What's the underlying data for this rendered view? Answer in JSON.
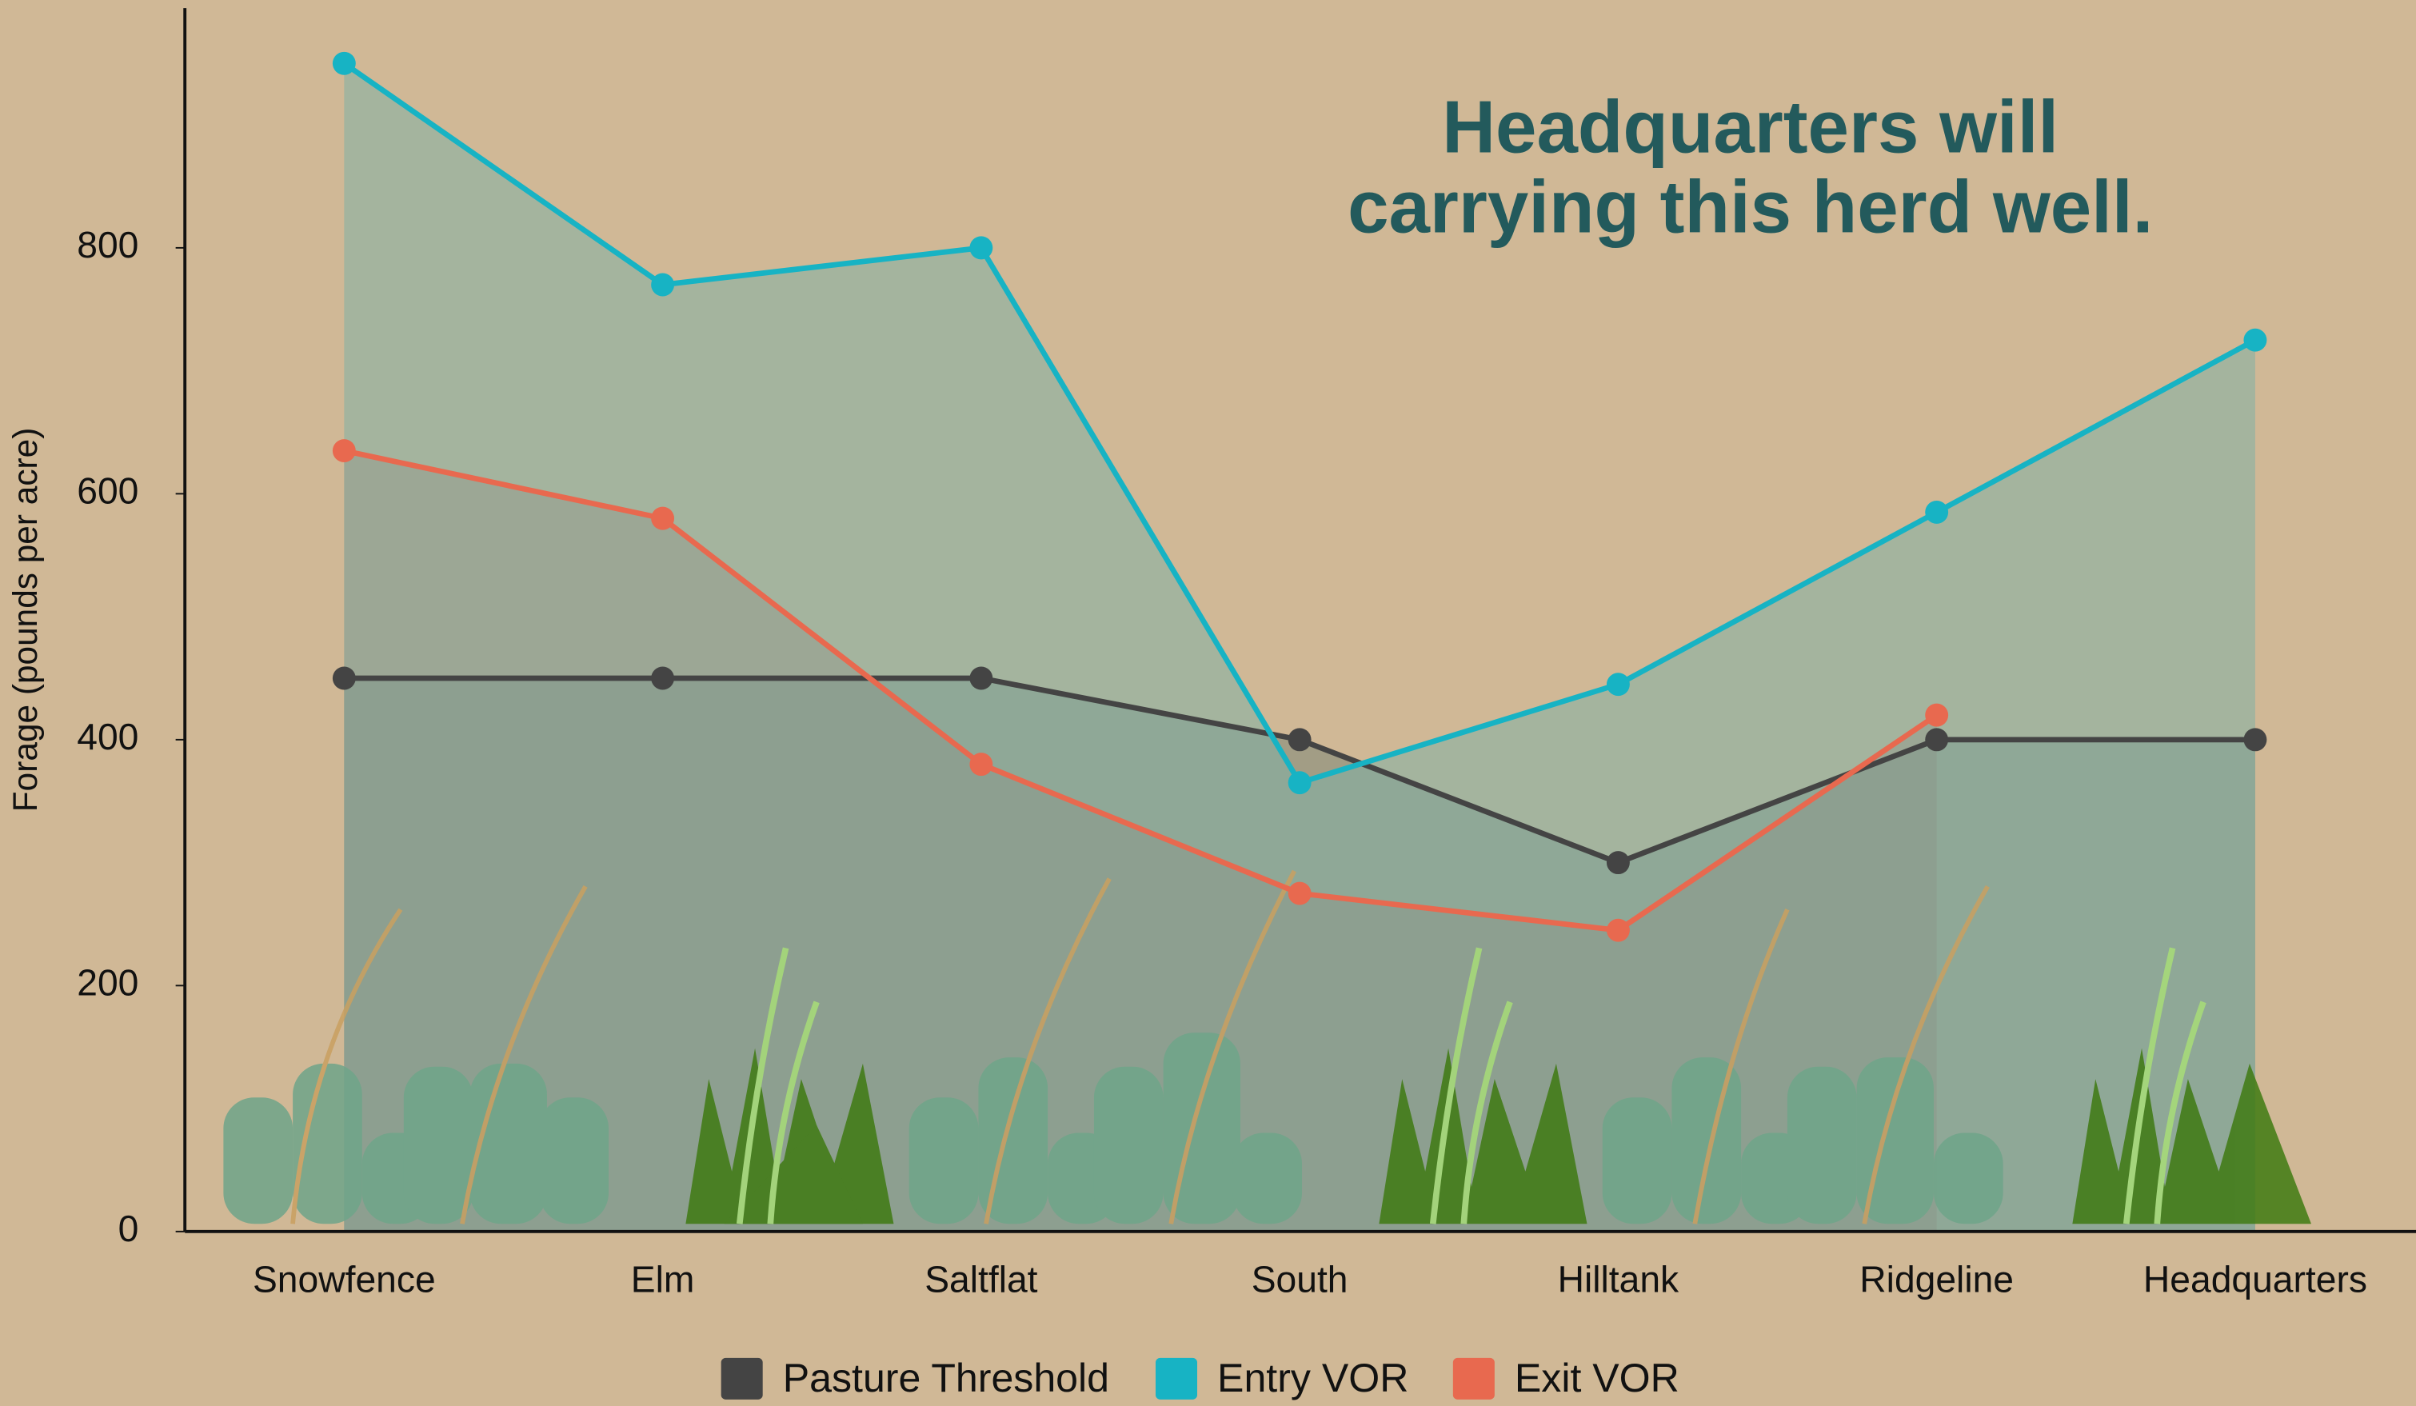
{
  "chart_data": {
    "type": "line",
    "annotation": [
      "Headquarters will",
      "carrying this herd well."
    ],
    "y_label": "Forage (pounds per acre)",
    "categories": [
      "Snowfence",
      "Elm",
      "Saltflat",
      "South",
      "Hilltank",
      "Ridgeline",
      "Headquarters"
    ],
    "series": [
      {
        "name": "Pasture Threshold",
        "color": "#444444",
        "values": [
          450,
          450,
          450,
          400,
          300,
          400,
          400
        ]
      },
      {
        "name": "Entry VOR",
        "color": "#17b3c4",
        "values": [
          950,
          770,
          800,
          365,
          445,
          585,
          725
        ]
      },
      {
        "name": "Exit VOR",
        "color": "#e8694f",
        "values": [
          635,
          580,
          380,
          275,
          245,
          420,
          null
        ]
      }
    ],
    "ylim": [
      0,
      995
    ],
    "yticks": [
      0,
      200,
      400,
      600,
      800
    ],
    "grid": false,
    "legend": "bottom",
    "area": true
  }
}
